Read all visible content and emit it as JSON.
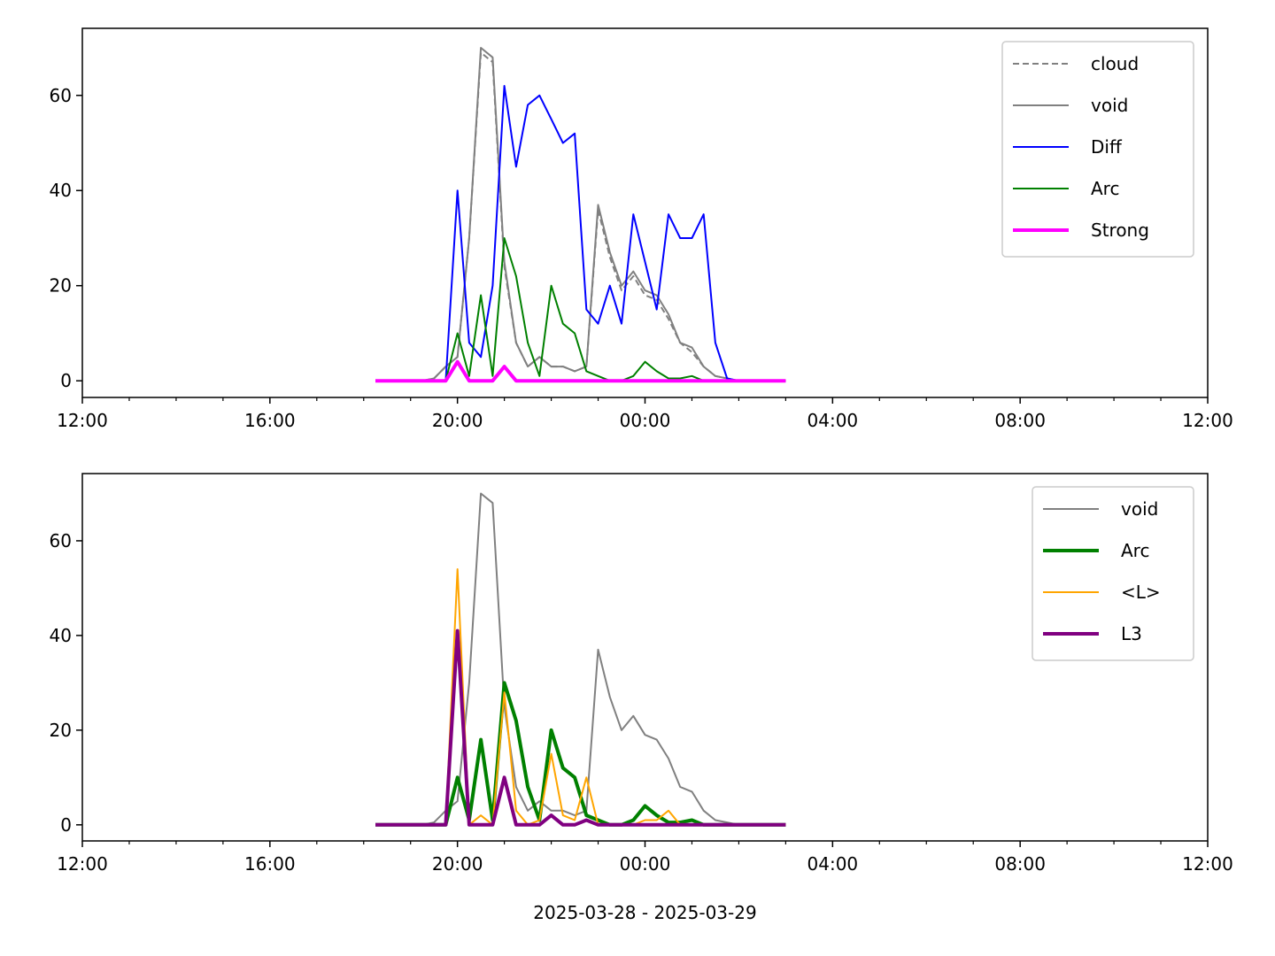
{
  "chart_data": [
    {
      "type": "line",
      "legend": "upper right",
      "x": [
        6.25,
        6.5,
        6.75,
        7.0,
        7.25,
        7.5,
        7.75,
        8.0,
        8.25,
        8.5,
        8.75,
        9.0,
        9.25,
        9.5,
        9.75,
        10.0,
        10.25,
        10.5,
        10.75,
        11.0,
        11.25,
        11.5,
        11.75,
        12.0,
        12.25,
        12.5,
        12.75,
        13.0,
        13.25,
        13.5,
        13.75,
        14.0,
        14.25,
        14.5,
        14.75,
        15.0
      ],
      "xlim": [
        0,
        24
      ],
      "xticks": [
        {
          "value": 0,
          "label": "12:00"
        },
        {
          "value": 4,
          "label": "16:00"
        },
        {
          "value": 8,
          "label": "20:00"
        },
        {
          "value": 12,
          "label": "00:00"
        },
        {
          "value": 16,
          "label": "04:00"
        },
        {
          "value": 20,
          "label": "08:00"
        },
        {
          "value": 24,
          "label": "12:00"
        }
      ],
      "xminorticks": [
        1,
        2,
        3,
        5,
        6,
        7,
        9,
        10,
        11,
        13,
        14,
        15,
        17,
        18,
        19,
        21,
        22,
        23
      ],
      "ylim": [
        -3.5,
        74.1
      ],
      "yticks": [
        0,
        20,
        40,
        60
      ],
      "series": [
        {
          "name": "cloud",
          "color": "#808080",
          "dash": "dashed",
          "width": 2,
          "values": [
            0,
            0,
            0,
            0,
            0,
            0.5,
            3,
            5,
            30,
            69,
            67,
            24,
            8,
            3,
            5,
            3,
            3,
            2,
            3,
            36,
            26,
            19,
            22,
            18,
            17,
            13,
            8,
            6,
            3,
            1,
            0.5,
            0,
            0,
            0,
            0,
            0
          ]
        },
        {
          "name": "void",
          "color": "#808080",
          "width": 2,
          "values": [
            0,
            0,
            0,
            0,
            0,
            0.5,
            3,
            5,
            30,
            70,
            68,
            25,
            8,
            3,
            5,
            3,
            3,
            2,
            3,
            37,
            27,
            20,
            23,
            19,
            18,
            14,
            8,
            7,
            3,
            1,
            0.5,
            0,
            0,
            0,
            0,
            0
          ]
        },
        {
          "name": "Diff",
          "color": "#0000ff",
          "width": 2,
          "values": [
            0,
            0,
            0,
            0,
            0,
            0,
            0,
            40,
            8,
            5,
            20,
            62,
            45,
            58,
            60,
            55,
            50,
            52,
            15,
            12,
            20,
            12,
            35,
            25,
            15,
            35,
            30,
            30,
            35,
            8,
            0.5,
            0,
            0,
            0,
            0,
            0
          ]
        },
        {
          "name": "Arc",
          "color": "#008000",
          "width": 2,
          "values": [
            0,
            0,
            0,
            0,
            0,
            0,
            0,
            10,
            1,
            18,
            1,
            30,
            22,
            8,
            1,
            20,
            12,
            10,
            2,
            1,
            0,
            0,
            1,
            4,
            2,
            0.5,
            0.5,
            1,
            0,
            0,
            0,
            0,
            0,
            0,
            0,
            0
          ]
        },
        {
          "name": "Strong",
          "color": "#ff00ff",
          "width": 4,
          "values": [
            0,
            0,
            0,
            0,
            0,
            0,
            0,
            4,
            0,
            0,
            0,
            3,
            0,
            0,
            0,
            0,
            0,
            0,
            0,
            0,
            0,
            0,
            0,
            0,
            0,
            0,
            0,
            0,
            0,
            0,
            0,
            0,
            0,
            0,
            0,
            0
          ]
        }
      ]
    },
    {
      "type": "line",
      "legend": "upper right",
      "xlabel": "2025-03-28 - 2025-03-29",
      "x": [
        6.25,
        6.5,
        6.75,
        7.0,
        7.25,
        7.5,
        7.75,
        8.0,
        8.25,
        8.5,
        8.75,
        9.0,
        9.25,
        9.5,
        9.75,
        10.0,
        10.25,
        10.5,
        10.75,
        11.0,
        11.25,
        11.5,
        11.75,
        12.0,
        12.25,
        12.5,
        12.75,
        13.0,
        13.25,
        13.5,
        13.75,
        14.0,
        14.25,
        14.5,
        14.75,
        15.0
      ],
      "xlim": [
        0,
        24
      ],
      "xticks": [
        {
          "value": 0,
          "label": "12:00"
        },
        {
          "value": 4,
          "label": "16:00"
        },
        {
          "value": 8,
          "label": "20:00"
        },
        {
          "value": 12,
          "label": "00:00"
        },
        {
          "value": 16,
          "label": "04:00"
        },
        {
          "value": 20,
          "label": "08:00"
        },
        {
          "value": 24,
          "label": "12:00"
        }
      ],
      "xminorticks": [
        1,
        2,
        3,
        5,
        6,
        7,
        9,
        10,
        11,
        13,
        14,
        15,
        17,
        18,
        19,
        21,
        22,
        23
      ],
      "ylim": [
        -3.4,
        74.2
      ],
      "yticks": [
        0,
        20,
        40,
        60
      ],
      "series": [
        {
          "name": "void",
          "color": "#808080",
          "width": 2,
          "values": [
            0,
            0,
            0,
            0,
            0,
            0.5,
            3,
            5,
            30,
            70,
            68,
            25,
            8,
            3,
            5,
            3,
            3,
            2,
            3,
            37,
            27,
            20,
            23,
            19,
            18,
            14,
            8,
            7,
            3,
            1,
            0.5,
            0,
            0,
            0,
            0,
            0
          ]
        },
        {
          "name": "Arc",
          "color": "#008000",
          "width": 4,
          "values": [
            0,
            0,
            0,
            0,
            0,
            0,
            0,
            10,
            1,
            18,
            1,
            30,
            22,
            8,
            1,
            20,
            12,
            10,
            2,
            1,
            0,
            0,
            1,
            4,
            2,
            0.5,
            0.5,
            1,
            0,
            0,
            0,
            0,
            0,
            0,
            0,
            0
          ]
        },
        {
          "name": "<L>",
          "color": "#ffa500",
          "width": 2,
          "values": [
            0,
            0,
            0,
            0,
            0,
            0,
            0,
            54,
            0,
            2,
            0,
            28,
            3,
            0,
            1,
            15,
            2,
            1,
            10,
            0,
            0,
            0,
            0,
            1,
            1,
            3,
            0,
            0,
            0,
            0,
            0,
            0,
            0,
            0,
            0,
            0
          ]
        },
        {
          "name": "L3",
          "color": "#800080",
          "width": 4,
          "values": [
            0,
            0,
            0,
            0,
            0,
            0,
            0,
            41,
            0,
            0,
            0,
            10,
            0,
            0,
            0,
            2,
            0,
            0,
            1,
            0,
            0,
            0,
            0,
            0,
            0,
            0,
            0,
            0,
            0,
            0,
            0,
            0,
            0,
            0,
            0,
            0
          ]
        }
      ]
    }
  ]
}
